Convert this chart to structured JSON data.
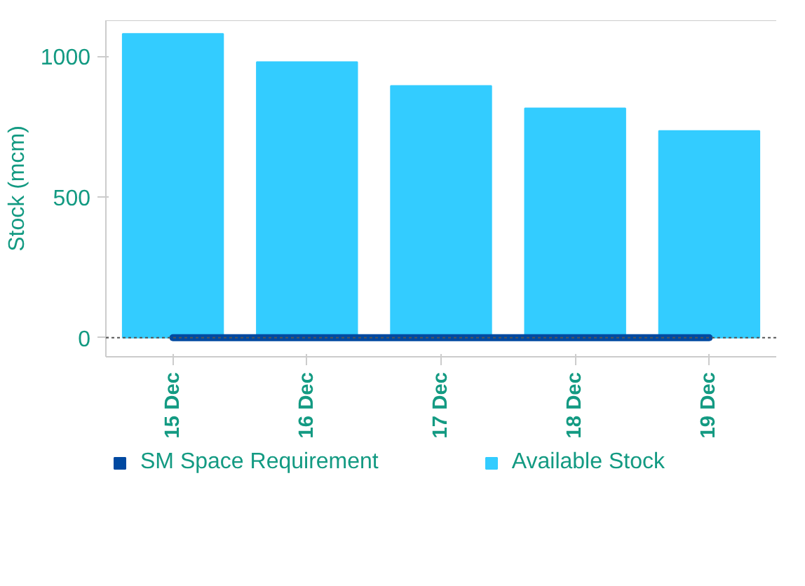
{
  "chart_data": {
    "type": "bar",
    "ylabel": "Stock (mcm)",
    "categories": [
      "15 Dec",
      "16 Dec",
      "17 Dec",
      "18 Dec",
      "19 Dec"
    ],
    "series": [
      {
        "name": "SM Space Requirement",
        "type": "line",
        "color": "#0049a1",
        "values": [
          0,
          0,
          0,
          0,
          0
        ]
      },
      {
        "name": "Available Stock",
        "color": "#33ccff",
        "values": [
          1080,
          980,
          895,
          815,
          735
        ]
      }
    ],
    "ylim": [
      -68,
      1128
    ],
    "yticks": [
      0,
      500,
      1000
    ],
    "ref_lines": [
      {
        "axis": "y",
        "value": 0,
        "line_style": "dashed",
        "color": "#555555"
      }
    ],
    "grid": false,
    "legend": "bottom"
  }
}
